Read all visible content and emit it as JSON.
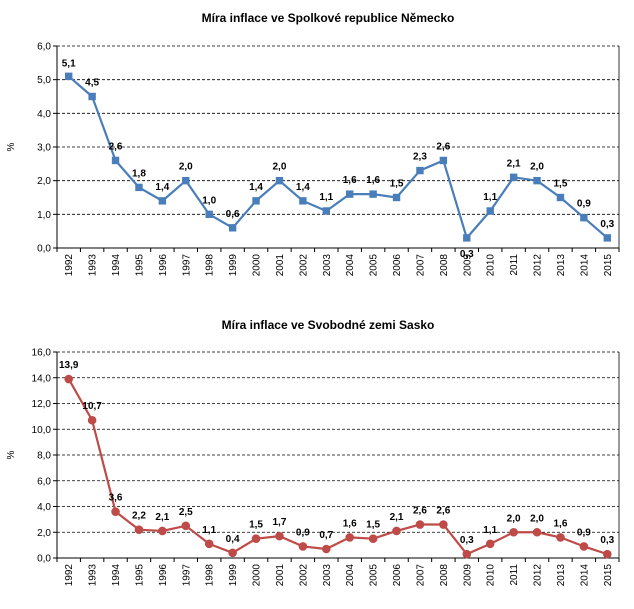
{
  "chart_data": [
    {
      "type": "line",
      "title": "Míra inflace ve Spolkové republice Německo",
      "ylabel": "%",
      "ylim": [
        0,
        6
      ],
      "yticks": [
        "0,0",
        "1,0",
        "2,0",
        "3,0",
        "4,0",
        "5,0",
        "6,0"
      ],
      "grid": "horizontal dashed",
      "color": "#4a7ebb",
      "categories": [
        "1992",
        "1993",
        "1994",
        "1995",
        "1996",
        "1997",
        "1998",
        "1999",
        "2000",
        "2001",
        "2002",
        "2003",
        "2004",
        "2005",
        "2006",
        "2007",
        "2008",
        "2009",
        "2010",
        "2011",
        "2012",
        "2013",
        "2014",
        "2015"
      ],
      "values": [
        5.1,
        4.5,
        2.6,
        1.8,
        1.4,
        2.0,
        1.0,
        0.6,
        1.4,
        2.0,
        1.4,
        1.1,
        1.6,
        1.6,
        1.5,
        2.3,
        2.6,
        0.3,
        1.1,
        2.1,
        2.0,
        1.5,
        0.9,
        0.3
      ],
      "labels": [
        "5,1",
        "4,5",
        "2,6",
        "1,8",
        "1,4",
        "2,0",
        "1,0",
        "0,6",
        "1,4",
        "2,0",
        "1,4",
        "1,1",
        "1,6",
        "1,6",
        "1,5",
        "2,3",
        "2,6",
        "0,3",
        "1,1",
        "2,1",
        "2,0",
        "1,5",
        "0,9",
        "0,3"
      ]
    },
    {
      "type": "line",
      "title": "Míra inflace ve Svobodné zemi Sasko",
      "ylabel": "%",
      "ylim": [
        0,
        16
      ],
      "yticks": [
        "0,0",
        "2,0",
        "4,0",
        "6,0",
        "8,0",
        "10,0",
        "12,0",
        "14,0",
        "16,0"
      ],
      "grid": "horizontal dashed",
      "color": "#be4b48",
      "categories": [
        "1992",
        "1993",
        "1994",
        "1995",
        "1996",
        "1997",
        "1998",
        "1999",
        "2000",
        "2001",
        "2002",
        "2003",
        "2004",
        "2005",
        "2006",
        "2007",
        "2008",
        "2009",
        "2010",
        "2011",
        "2012",
        "2013",
        "2014",
        "2015"
      ],
      "values": [
        13.9,
        10.7,
        3.6,
        2.2,
        2.1,
        2.5,
        1.1,
        0.4,
        1.5,
        1.7,
        0.9,
        0.7,
        1.6,
        1.5,
        2.1,
        2.6,
        2.6,
        0.3,
        1.1,
        2.0,
        2.0,
        1.6,
        0.9,
        0.3
      ],
      "labels": [
        "13,9",
        "10,7",
        "3,6",
        "2,2",
        "2,1",
        "2,5",
        "1,1",
        "0,4",
        "1,5",
        "1,7",
        "0,9",
        "0,7",
        "1,6",
        "1,5",
        "2,1",
        "2,6",
        "2,6",
        "0,3",
        "1,1",
        "2,0",
        "2,0",
        "1,6",
        "0,9",
        "0,3"
      ]
    }
  ]
}
